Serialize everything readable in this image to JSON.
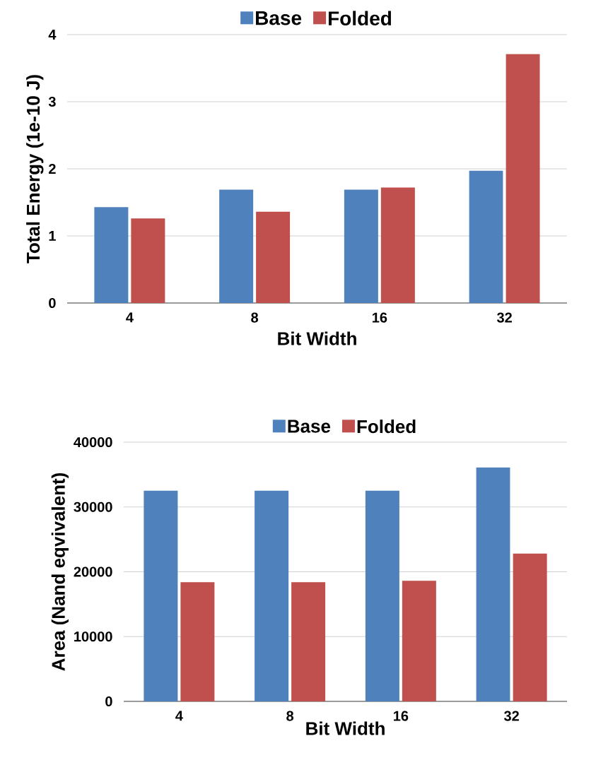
{
  "chart_data": [
    {
      "type": "bar",
      "categories": [
        "4",
        "8",
        "16",
        "32"
      ],
      "xlabel": "Bit Width",
      "ylabel": "Total Energy (1e-10 J)",
      "ylim": [
        0,
        4
      ],
      "yticks": [
        0,
        1,
        2,
        3,
        4
      ],
      "grid": "y",
      "legend": "top",
      "series": [
        {
          "name": "Base",
          "color": "#4f81bd",
          "values": [
            1.43,
            1.69,
            1.69,
            1.97
          ]
        },
        {
          "name": "Folded",
          "color": "#c0504d",
          "values": [
            1.26,
            1.36,
            1.72,
            3.71
          ]
        }
      ]
    },
    {
      "type": "bar",
      "categories": [
        "4",
        "8",
        "16",
        "32"
      ],
      "xlabel": "Bit Width",
      "ylabel": "Area (Nand eqvivalent)",
      "ylim": [
        0,
        40000
      ],
      "yticks": [
        0,
        10000,
        20000,
        30000,
        40000
      ],
      "grid": "y",
      "legend": "top",
      "series": [
        {
          "name": "Base",
          "color": "#4f81bd",
          "values": [
            32500,
            32500,
            32500,
            36100
          ]
        },
        {
          "name": "Folded",
          "color": "#c0504d",
          "values": [
            18400,
            18400,
            18600,
            22800
          ]
        }
      ]
    }
  ]
}
